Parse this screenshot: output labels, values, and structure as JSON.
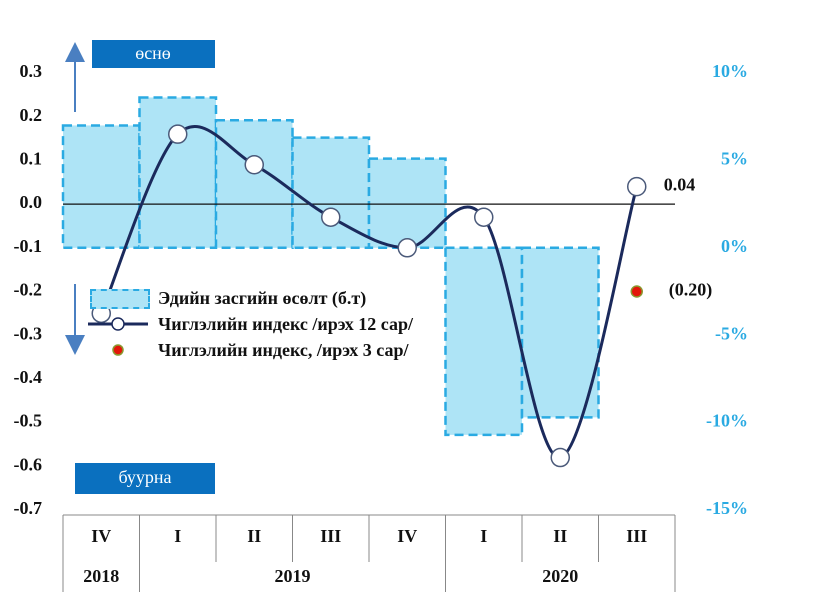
{
  "chart_data": {
    "type": "bar",
    "categories": [
      "IV",
      "I",
      "II",
      "III",
      "IV",
      "I",
      "II",
      "III"
    ],
    "groups": [
      {
        "label": "2018",
        "count": 1
      },
      {
        "label": "2019",
        "count": 4
      },
      {
        "label": "2020",
        "count": 3
      }
    ],
    "ylim": [
      -0.7,
      0.3
    ],
    "yticks": [
      0.3,
      0.2,
      0.1,
      {
        "value": 0,
        "label": "0.0"
      },
      -0.1,
      -0.2,
      -0.3,
      -0.4,
      -0.5,
      -0.6,
      -0.7
    ],
    "y2lim": [
      -15,
      10
    ],
    "y2ticks": [
      {
        "value": 10,
        "label": "10%"
      },
      {
        "value": 5,
        "label": "5%"
      },
      {
        "value": 0,
        "label": "0%"
      },
      {
        "value": -5,
        "label": "-5%"
      },
      {
        "value": -10,
        "label": "-10%"
      },
      {
        "value": -15,
        "label": "-15%"
      }
    ],
    "annotations": {
      "up": "өснө",
      "down": "буурна"
    },
    "series": [
      {
        "name": "Эдийн засгийн өсөлт (б.т)",
        "type": "bar",
        "axis": "y2",
        "color": "#2aaae2",
        "values": [
          7.0,
          8.6,
          7.3,
          6.3,
          5.1,
          -10.7,
          -9.7,
          null
        ]
      },
      {
        "name": "Чиглэлийн индекс /ирэх 12 сар/",
        "type": "line",
        "axis": "y",
        "color": "#1b2a5c",
        "values": [
          -0.25,
          0.16,
          0.09,
          -0.03,
          -0.1,
          -0.03,
          -0.58,
          0.04
        ],
        "value_labels": [
          null,
          null,
          null,
          null,
          null,
          null,
          null,
          "0.04"
        ]
      },
      {
        "name": "Чиглэлийн индекс, /ирэх 3 сар/",
        "type": "dot",
        "axis": "y",
        "color": "#e3170a",
        "values": [
          null,
          null,
          null,
          null,
          null,
          null,
          null,
          -0.2
        ],
        "value_labels": [
          null,
          null,
          null,
          null,
          null,
          null,
          null,
          "(0.20)"
        ]
      }
    ]
  }
}
